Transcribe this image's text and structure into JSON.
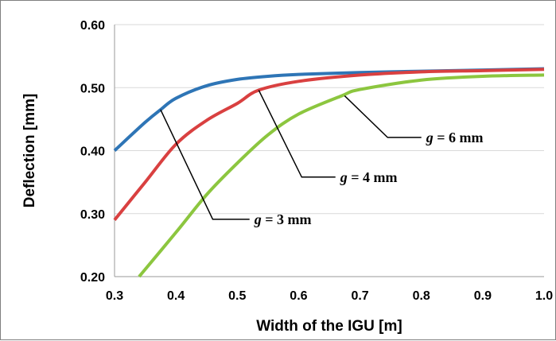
{
  "chart_data": {
    "type": "line",
    "xlabel": "Width of the IGU [m]",
    "ylabel": "Deflection [mm]",
    "xlim": [
      0.3,
      1.0
    ],
    "ylim": [
      0.2,
      0.6
    ],
    "xticks": [
      "0.3",
      "0.4",
      "0.5",
      "0.6",
      "0.7",
      "0.8",
      "0.9",
      "1.0"
    ],
    "yticks": [
      "0.20",
      "0.30",
      "0.40",
      "0.50",
      "0.60"
    ],
    "grid": {
      "horizontal": true,
      "vertical": false
    },
    "legend": "none",
    "series": [
      {
        "color": "#2e75b6",
        "x": [
          0.3,
          0.35,
          0.375,
          0.4,
          0.45,
          0.5,
          0.55,
          0.6,
          0.7,
          0.8,
          0.9,
          1.0
        ],
        "y": [
          0.4,
          0.445,
          0.465,
          0.483,
          0.503,
          0.513,
          0.518,
          0.521,
          0.524,
          0.526,
          0.528,
          0.53
        ]
      },
      {
        "color": "#d94040",
        "x": [
          0.3,
          0.35,
          0.4,
          0.45,
          0.5,
          0.535,
          0.6,
          0.7,
          0.8,
          0.9,
          1.0
        ],
        "y": [
          0.29,
          0.35,
          0.41,
          0.448,
          0.475,
          0.496,
          0.51,
          0.52,
          0.525,
          0.527,
          0.529
        ]
      },
      {
        "color": "#8cc63f",
        "x": [
          0.34,
          0.4,
          0.45,
          0.5,
          0.55,
          0.6,
          0.67,
          0.7,
          0.8,
          0.9,
          1.0
        ],
        "y": [
          0.2,
          0.27,
          0.33,
          0.38,
          0.425,
          0.458,
          0.487,
          0.497,
          0.512,
          0.518,
          0.52
        ]
      }
    ],
    "annotations": [
      {
        "prefix": "g",
        "text": " = 3 mm",
        "point": [
          0.375,
          0.465
        ],
        "elbow": [
          0.46,
          0.291
        ],
        "end": [
          0.52,
          0.291
        ]
      },
      {
        "prefix": "g",
        "text": " = 4 mm",
        "point": [
          0.535,
          0.496
        ],
        "elbow": [
          0.605,
          0.358
        ],
        "end": [
          0.66,
          0.358
        ]
      },
      {
        "prefix": "g",
        "text": " = 6 mm",
        "point": [
          0.675,
          0.487
        ],
        "elbow": [
          0.745,
          0.421
        ],
        "end": [
          0.8,
          0.421
        ]
      }
    ]
  }
}
